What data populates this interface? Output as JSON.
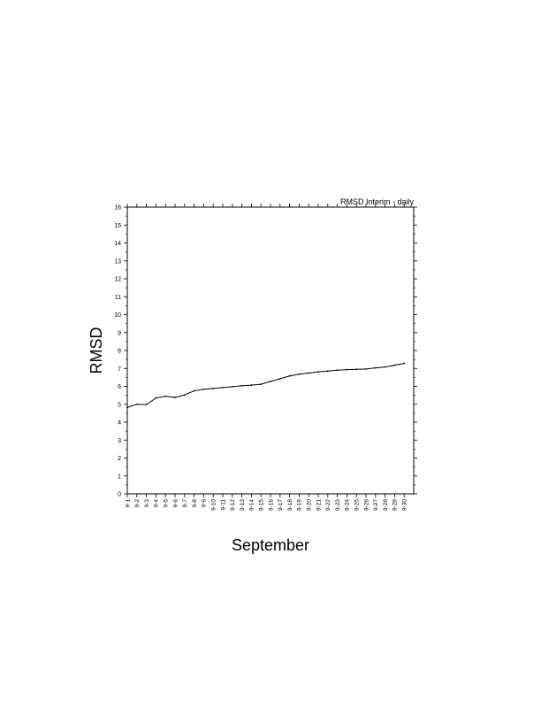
{
  "chart_data": {
    "type": "line",
    "title": "RMSD Interim - daily",
    "xlabel": "September",
    "ylabel": "RMSD",
    "ylim": [
      0,
      16
    ],
    "yticks": [
      0,
      1,
      2,
      3,
      4,
      5,
      6,
      7,
      8,
      9,
      10,
      11,
      12,
      13,
      14,
      15,
      16
    ],
    "grid": false,
    "categories": [
      "9-1",
      "9-2",
      "9-3",
      "9-4",
      "9-5",
      "9-6",
      "9-7",
      "9-8",
      "9-9",
      "9-10",
      "9-11",
      "9-12",
      "9-13",
      "9-14",
      "9-15",
      "9-16",
      "9-17",
      "9-18",
      "9-19",
      "9-20",
      "9-21",
      "9-22",
      "9-23",
      "9-24",
      "9-25",
      "9-26",
      "9-27",
      "9-28",
      "9-29",
      "9-30"
    ],
    "values": [
      4.82,
      5.0,
      4.98,
      5.35,
      5.45,
      5.38,
      5.52,
      5.75,
      5.84,
      5.88,
      5.93,
      5.98,
      6.03,
      6.07,
      6.12,
      6.27,
      6.42,
      6.58,
      6.68,
      6.74,
      6.81,
      6.85,
      6.9,
      6.93,
      6.95,
      6.97,
      7.03,
      7.08,
      7.18,
      7.28
    ],
    "line_color": "#000000"
  }
}
